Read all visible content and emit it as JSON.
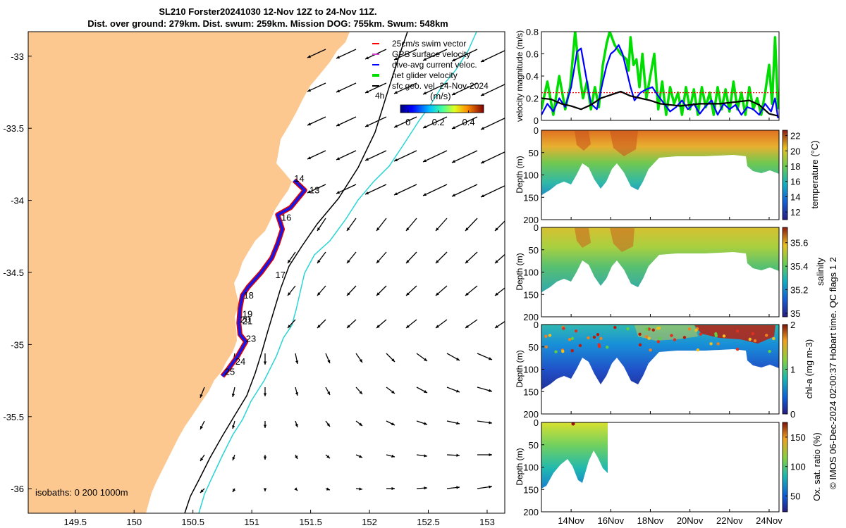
{
  "colors": {
    "land": "#fcc890",
    "swim_vector": "#ff0000",
    "gps_velocity": "#cc44cc",
    "dive_avg": "#0000ff",
    "net_glider": "#00dd00",
    "sfc_geo": "#000000",
    "isobath_200": "#000000",
    "isobath_1000": "#2ad4d4",
    "track_red": "#e60000",
    "track_blue": "#1818e0"
  },
  "chart_data": [
    {
      "type": "map",
      "title_line1": "SL210 Forster20241030 12-Nov 12Z to 24-Nov 11Z.",
      "title_line2": "Dist. over ground: 279km. Dist. swum: 259km. Mission DOG: 755km. Swum: 548km",
      "x_ticks": [
        "149.5",
        "150",
        "150.5",
        "151",
        "151.5",
        "152",
        "152.5",
        "153"
      ],
      "x_tick_values": [
        149.5,
        150,
        150.5,
        151,
        151.5,
        152,
        152.5,
        153
      ],
      "y_ticks": [
        "-33",
        "-33.5",
        "-34",
        "-34.5",
        "-35",
        "-35.5",
        "-36"
      ],
      "y_tick_values": [
        -33,
        -33.5,
        -34,
        -34.5,
        -35,
        -35.5,
        -36
      ],
      "xlim": [
        149.1,
        153.15
      ],
      "ylim": [
        -36.17,
        -32.83
      ],
      "legend": [
        {
          "label": "25cm/s swim vector",
          "color": "#ff0000"
        },
        {
          "label": "GPS surface velocity",
          "color": "#cc44cc"
        },
        {
          "label": "dive-avg current veloc.",
          "color": "#0000ff"
        },
        {
          "label": "net glider velocity",
          "color": "#00dd00"
        },
        {
          "label": "sfc geo. vel. 24-Nov-2024",
          "color": "#000000"
        }
      ],
      "legend_note": "4h",
      "colorbar_label": "(m/s)",
      "colorbar_ticks": [
        "0",
        "0.2",
        "0.4"
      ],
      "colorbar_tick_values": [
        0,
        0.2,
        0.4
      ],
      "colorbar_range": [
        -0.05,
        0.5
      ],
      "isobath_note": "isobaths: 0   200  1000m",
      "day_labels": [
        {
          "label": "13",
          "lon": 151.49,
          "lat": -33.95
        },
        {
          "label": "14",
          "lon": 151.36,
          "lat": -33.87
        },
        {
          "label": "16",
          "lon": 151.25,
          "lat": -34.14
        },
        {
          "label": "17",
          "lon": 151.2,
          "lat": -34.54
        },
        {
          "label": "18",
          "lon": 150.93,
          "lat": -34.68
        },
        {
          "label": "19",
          "lon": 150.92,
          "lat": -34.81
        },
        {
          "label": "20",
          "lon": 150.9,
          "lat": -34.85
        },
        {
          "label": "21",
          "lon": 150.92,
          "lat": -34.86
        },
        {
          "label": "23",
          "lon": 150.95,
          "lat": -34.98
        },
        {
          "label": "24",
          "lon": 150.86,
          "lat": -35.14
        },
        {
          "label": "25",
          "lon": 150.77,
          "lat": -35.21
        }
      ]
    },
    {
      "type": "line",
      "ylabel": "velocity magnitude (m/s)",
      "ylim": [
        0,
        0.8
      ],
      "y_ticks": [
        "0",
        "0.2",
        "0.4",
        "0.6",
        "0.8"
      ],
      "y_tick_values": [
        0,
        0.2,
        0.4,
        0.6,
        0.8
      ],
      "xlim": [
        12.5,
        24.5
      ],
      "series": [
        {
          "name": "net glider velocity",
          "color": "#00dd00",
          "x": [
            12.5,
            12.8,
            13.1,
            13.4,
            13.7,
            13.95,
            14.2,
            14.4,
            14.6,
            14.8,
            15.0,
            15.2,
            15.4,
            15.6,
            15.8,
            15.95,
            16.2,
            16.5,
            16.8,
            16.9,
            17.0,
            17.15,
            17.3,
            17.45,
            17.6,
            17.8,
            18.0,
            18.2,
            18.4,
            18.6,
            18.8,
            19.0,
            19.2,
            19.4,
            19.6,
            19.8,
            20.0,
            20.2,
            20.4,
            20.6,
            20.8,
            21.0,
            21.2,
            21.4,
            21.6,
            21.8,
            22.0,
            22.2,
            22.4,
            22.6,
            22.8,
            23.0,
            23.2,
            23.4,
            23.6,
            23.8,
            24.0,
            24.15,
            24.3,
            24.45
          ],
          "values": [
            0.1,
            0.35,
            0.05,
            0.4,
            0.1,
            0.3,
            0.8,
            0.45,
            0.2,
            0.35,
            0.1,
            0.3,
            0.12,
            0.5,
            0.7,
            0.8,
            0.68,
            0.6,
            0.55,
            0.45,
            0.75,
            0.5,
            0.55,
            0.3,
            0.6,
            0.2,
            0.4,
            0.6,
            0.1,
            0.35,
            0.05,
            0.3,
            0.15,
            0.25,
            0.05,
            0.3,
            0.1,
            0.28,
            0.05,
            0.3,
            0.12,
            0.25,
            0.05,
            0.3,
            0.1,
            0.28,
            0.08,
            0.35,
            0.1,
            0.25,
            0.05,
            0.3,
            0.1,
            0.2,
            0.05,
            0.25,
            0.5,
            0.15,
            0.75,
            0.1
          ]
        },
        {
          "name": "25cm/s swim vector",
          "color": "#ff0000",
          "x": [
            12.5,
            24.5
          ],
          "values": [
            0.25,
            0.25
          ]
        },
        {
          "name": "dive-avg current veloc.",
          "color": "#0000ff",
          "x": [
            12.5,
            12.8,
            13.1,
            13.4,
            13.7,
            14.0,
            14.3,
            14.5,
            14.7,
            15.0,
            15.3,
            15.6,
            15.8,
            16.0,
            16.2,
            16.4,
            16.6,
            16.8,
            17.0,
            17.2,
            17.5,
            17.8,
            18.1,
            18.4,
            18.7,
            19.0,
            19.3,
            19.6,
            19.9,
            20.2,
            20.5,
            20.8,
            21.1,
            21.4,
            21.7,
            22.0,
            22.3,
            22.6,
            22.9,
            23.2,
            23.5,
            23.8,
            24.1,
            24.3,
            24.45
          ],
          "values": [
            0.05,
            0.15,
            0.08,
            0.2,
            0.12,
            0.3,
            0.62,
            0.65,
            0.45,
            0.15,
            0.1,
            0.35,
            0.5,
            0.6,
            0.63,
            0.68,
            0.6,
            0.45,
            0.3,
            0.18,
            0.25,
            0.28,
            0.3,
            0.22,
            0.15,
            0.08,
            0.12,
            0.18,
            0.1,
            0.15,
            0.06,
            0.13,
            0.18,
            0.05,
            0.15,
            0.1,
            0.14,
            0.05,
            0.12,
            0.1,
            0.05,
            0.15,
            0.08,
            0.2,
            0.02
          ]
        },
        {
          "name": "sfc geo. vel.",
          "color": "#000000",
          "x": [
            12.5,
            13.0,
            13.5,
            14.0,
            14.5,
            15.0,
            15.5,
            16.0,
            16.5,
            17.0,
            17.5,
            18.0,
            18.5,
            19.0,
            19.5,
            20.0,
            20.5,
            21.0,
            21.5,
            22.0,
            22.5,
            23.0,
            23.5,
            24.0,
            24.45
          ],
          "values": [
            0.2,
            0.19,
            0.15,
            0.13,
            0.1,
            0.14,
            0.2,
            0.23,
            0.26,
            0.22,
            0.2,
            0.18,
            0.15,
            0.14,
            0.13,
            0.14,
            0.15,
            0.15,
            0.15,
            0.16,
            0.17,
            0.18,
            0.14,
            0.06,
            0.04
          ]
        }
      ]
    },
    {
      "type": "heatmap",
      "ylabel": "Depth (m)",
      "cbar_label": "temperature (°C)",
      "ylim": [
        200,
        0
      ],
      "y_ticks": [
        "0",
        "50",
        "100",
        "150",
        "200"
      ],
      "y_tick_values": [
        0,
        50,
        100,
        150,
        200
      ],
      "cbar_ticks": [
        "12",
        "14",
        "16",
        "18",
        "20",
        "22"
      ],
      "cbar_tick_values": [
        12,
        14,
        16,
        18,
        20,
        22
      ],
      "cbar_range": [
        11,
        22.7
      ]
    },
    {
      "type": "heatmap",
      "ylabel": "Depth (m)",
      "cbar_label": "salinity",
      "ylim": [
        200,
        0
      ],
      "y_ticks": [
        "0",
        "50",
        "100",
        "150",
        "200"
      ],
      "y_tick_values": [
        0,
        50,
        100,
        150,
        200
      ],
      "cbar_ticks": [
        "35",
        "35.2",
        "35.4",
        "35.6"
      ],
      "cbar_tick_values": [
        35,
        35.2,
        35.4,
        35.6
      ],
      "cbar_range": [
        34.97,
        35.73
      ]
    },
    {
      "type": "heatmap",
      "ylabel": "Depth (m)",
      "cbar_label": "chl-a (mg m-3)",
      "ylim": [
        200,
        0
      ],
      "y_ticks": [
        "0",
        "50",
        "100",
        "150",
        "200"
      ],
      "y_tick_values": [
        0,
        50,
        100,
        150,
        200
      ],
      "cbar_ticks": [
        "0",
        "1",
        "2"
      ],
      "cbar_tick_values": [
        0,
        1,
        2
      ],
      "cbar_range": [
        0,
        2
      ]
    },
    {
      "type": "heatmap",
      "ylabel": "Depth (m)",
      "cbar_label": "Ox. sat. ratio (%)",
      "ylim": [
        200,
        0
      ],
      "y_ticks": [
        "0",
        "50",
        "100",
        "150",
        "200"
      ],
      "y_tick_values": [
        0,
        50,
        100,
        150,
        200
      ],
      "cbar_ticks": [
        "50",
        "100",
        "150"
      ],
      "cbar_tick_values": [
        50,
        100,
        150
      ],
      "cbar_range": [
        23,
        175
      ],
      "x_ticks": [
        "14Nov",
        "16Nov",
        "18Nov",
        "20Nov",
        "22Nov",
        "24Nov"
      ],
      "x_tick_values": [
        14,
        16,
        18,
        20,
        22,
        24
      ]
    }
  ],
  "side_note": "© IMOS 06-Dec-2024 02:00:37 Hobart time. QC flags 1  2"
}
